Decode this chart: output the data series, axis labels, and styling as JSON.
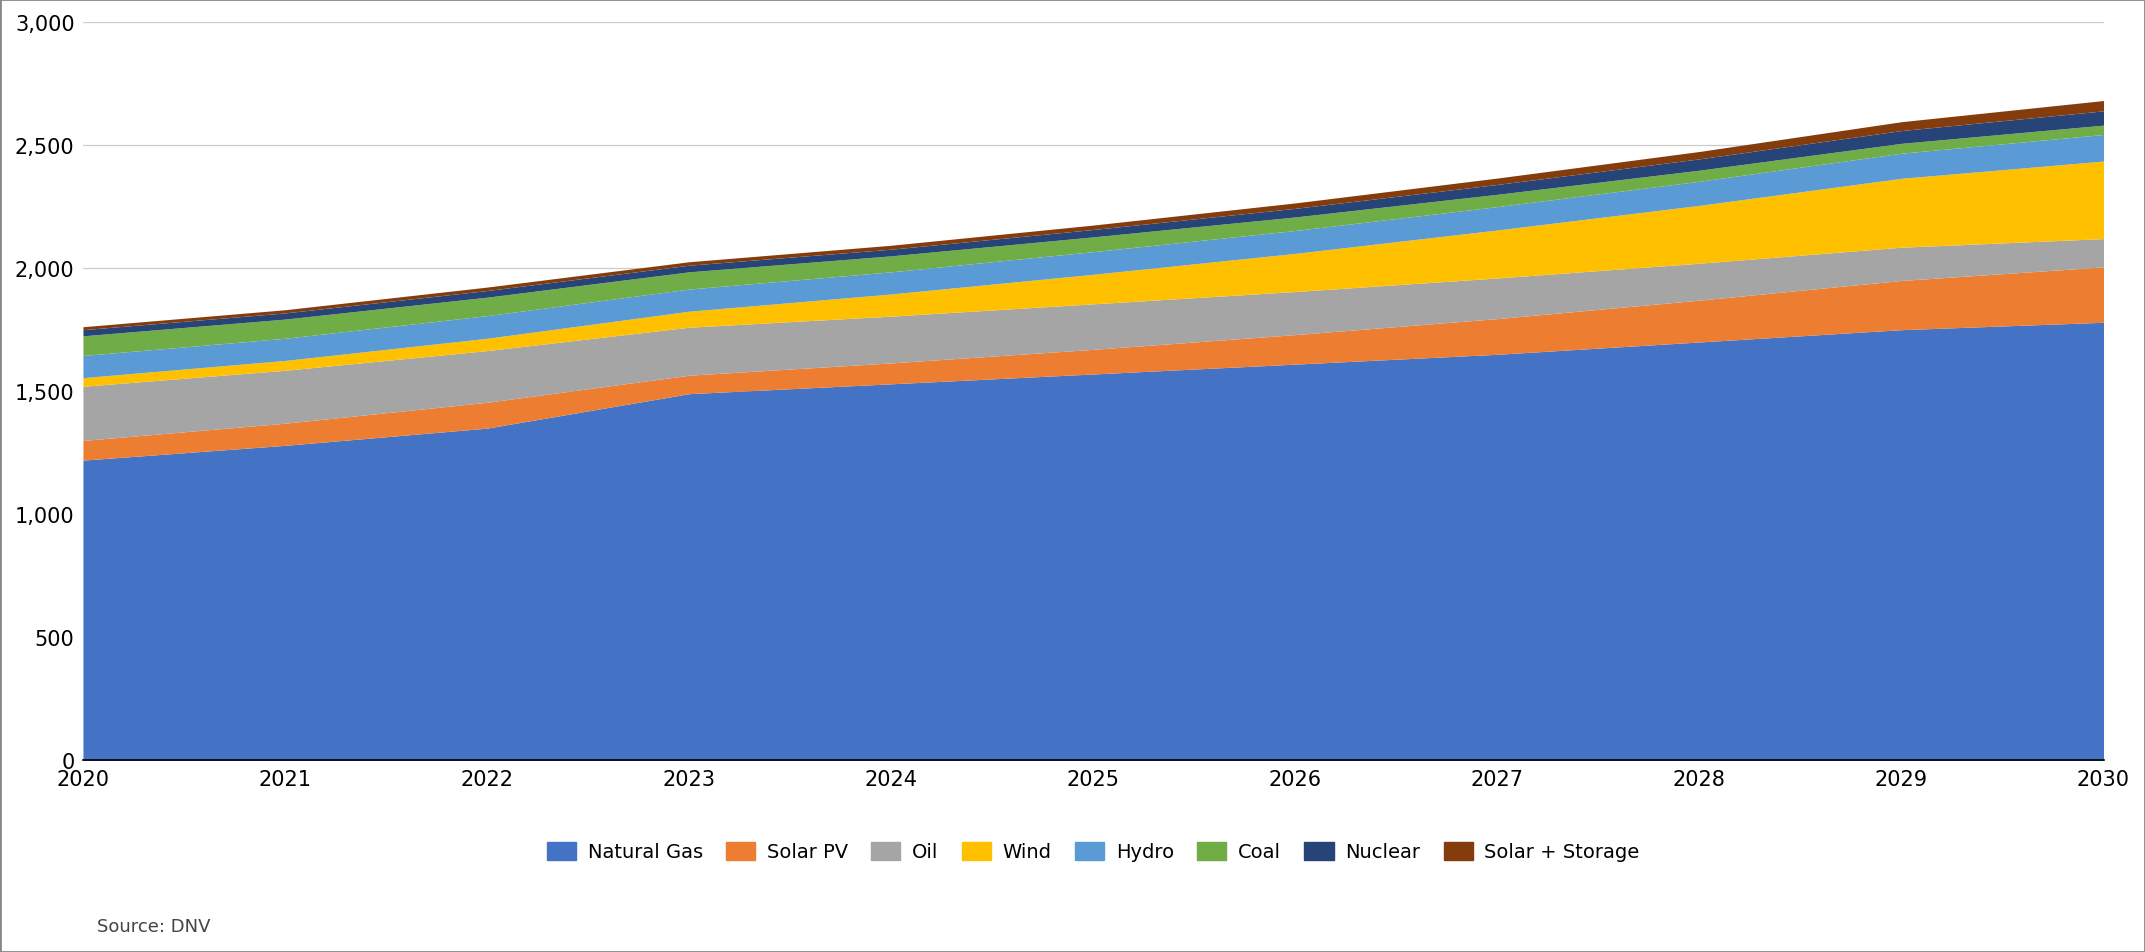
{
  "years": [
    2020,
    2021,
    2022,
    2023,
    2024,
    2025,
    2026,
    2027,
    2028,
    2029,
    2030
  ],
  "series": {
    "Natural Gas": [
      1220,
      1280,
      1350,
      1490,
      1530,
      1570,
      1610,
      1650,
      1700,
      1750,
      1780
    ],
    "Solar PV": [
      80,
      90,
      105,
      75,
      85,
      100,
      120,
      145,
      170,
      200,
      225
    ],
    "Oil": [
      220,
      215,
      210,
      195,
      190,
      185,
      175,
      165,
      150,
      135,
      115
    ],
    "Wind": [
      35,
      40,
      50,
      65,
      90,
      120,
      155,
      195,
      235,
      280,
      315
    ],
    "Hydro": [
      90,
      90,
      92,
      90,
      90,
      92,
      93,
      95,
      98,
      102,
      108
    ],
    "Coal": [
      80,
      78,
      75,
      70,
      65,
      60,
      55,
      50,
      45,
      40,
      38
    ],
    "Nuclear": [
      25,
      25,
      27,
      27,
      27,
      30,
      35,
      40,
      46,
      52,
      58
    ],
    "Solar + Storage": [
      12,
      13,
      14,
      14,
      16,
      18,
      22,
      26,
      30,
      36,
      42
    ]
  },
  "colors": {
    "Natural Gas": "#4472C4",
    "Solar PV": "#ED7D31",
    "Oil": "#A5A5A5",
    "Wind": "#FFC000",
    "Hydro": "#5B9BD5",
    "Coal": "#70AD47",
    "Nuclear": "#264478",
    "Solar + Storage": "#843C0C"
  },
  "ylim": [
    0,
    3000
  ],
  "yticks": [
    0,
    500,
    1000,
    1500,
    2000,
    2500,
    3000
  ],
  "legend_order": [
    "Natural Gas",
    "Solar PV",
    "Oil",
    "Wind",
    "Hydro",
    "Coal",
    "Nuclear",
    "Solar + Storage"
  ],
  "source_text": "Source: DNV",
  "background_color": "#FFFFFF",
  "grid_color": "#CCCCCC",
  "border_color": "#AAAAAA",
  "figsize": [
    21.45,
    9.53
  ],
  "dpi": 100
}
